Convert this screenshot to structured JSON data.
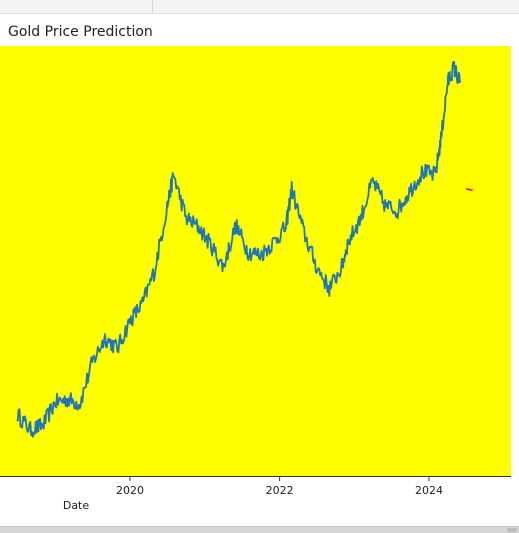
{
  "chart_data": {
    "type": "line",
    "title": "Gold Price Prediction",
    "xlabel": "Date",
    "ylabel": "",
    "x_ticks": [
      "2020",
      "2022",
      "2024"
    ],
    "background_color": "#ffff00",
    "grid": false,
    "series": [
      {
        "color": "#1f77b4",
        "x": [
          "2018-07",
          "2018-09",
          "2018-11",
          "2019-01",
          "2019-03",
          "2019-05",
          "2019-07",
          "2019-09",
          "2019-11",
          "2020-01",
          "2020-03",
          "2020-05",
          "2020-07",
          "2020-08",
          "2020-10",
          "2020-12",
          "2021-02",
          "2021-04",
          "2021-06",
          "2021-08",
          "2021-10",
          "2021-12",
          "2022-02",
          "2022-03",
          "2022-05",
          "2022-07",
          "2022-09",
          "2022-11",
          "2022-12",
          "2023-02",
          "2023-04",
          "2023-06",
          "2023-08",
          "2023-10",
          "2023-12",
          "2024-02",
          "2024-03",
          "2024-04",
          "2024-05",
          "2024-06"
        ],
        "values": [
          1250,
          1200,
          1215,
          1290,
          1300,
          1285,
          1420,
          1500,
          1465,
          1555,
          1610,
          1720,
          1930,
          2030,
          1890,
          1860,
          1800,
          1730,
          1865,
          1780,
          1770,
          1810,
          1860,
          1985,
          1840,
          1730,
          1660,
          1730,
          1810,
          1890,
          2010,
          1930,
          1915,
          1980,
          2040,
          2030,
          2155,
          2330,
          2380,
          2330
        ]
      },
      {
        "color": "#ff0000",
        "x": [
          "2024-07",
          "2024-08"
        ],
        "values": [
          1985,
          1980
        ]
      }
    ]
  }
}
